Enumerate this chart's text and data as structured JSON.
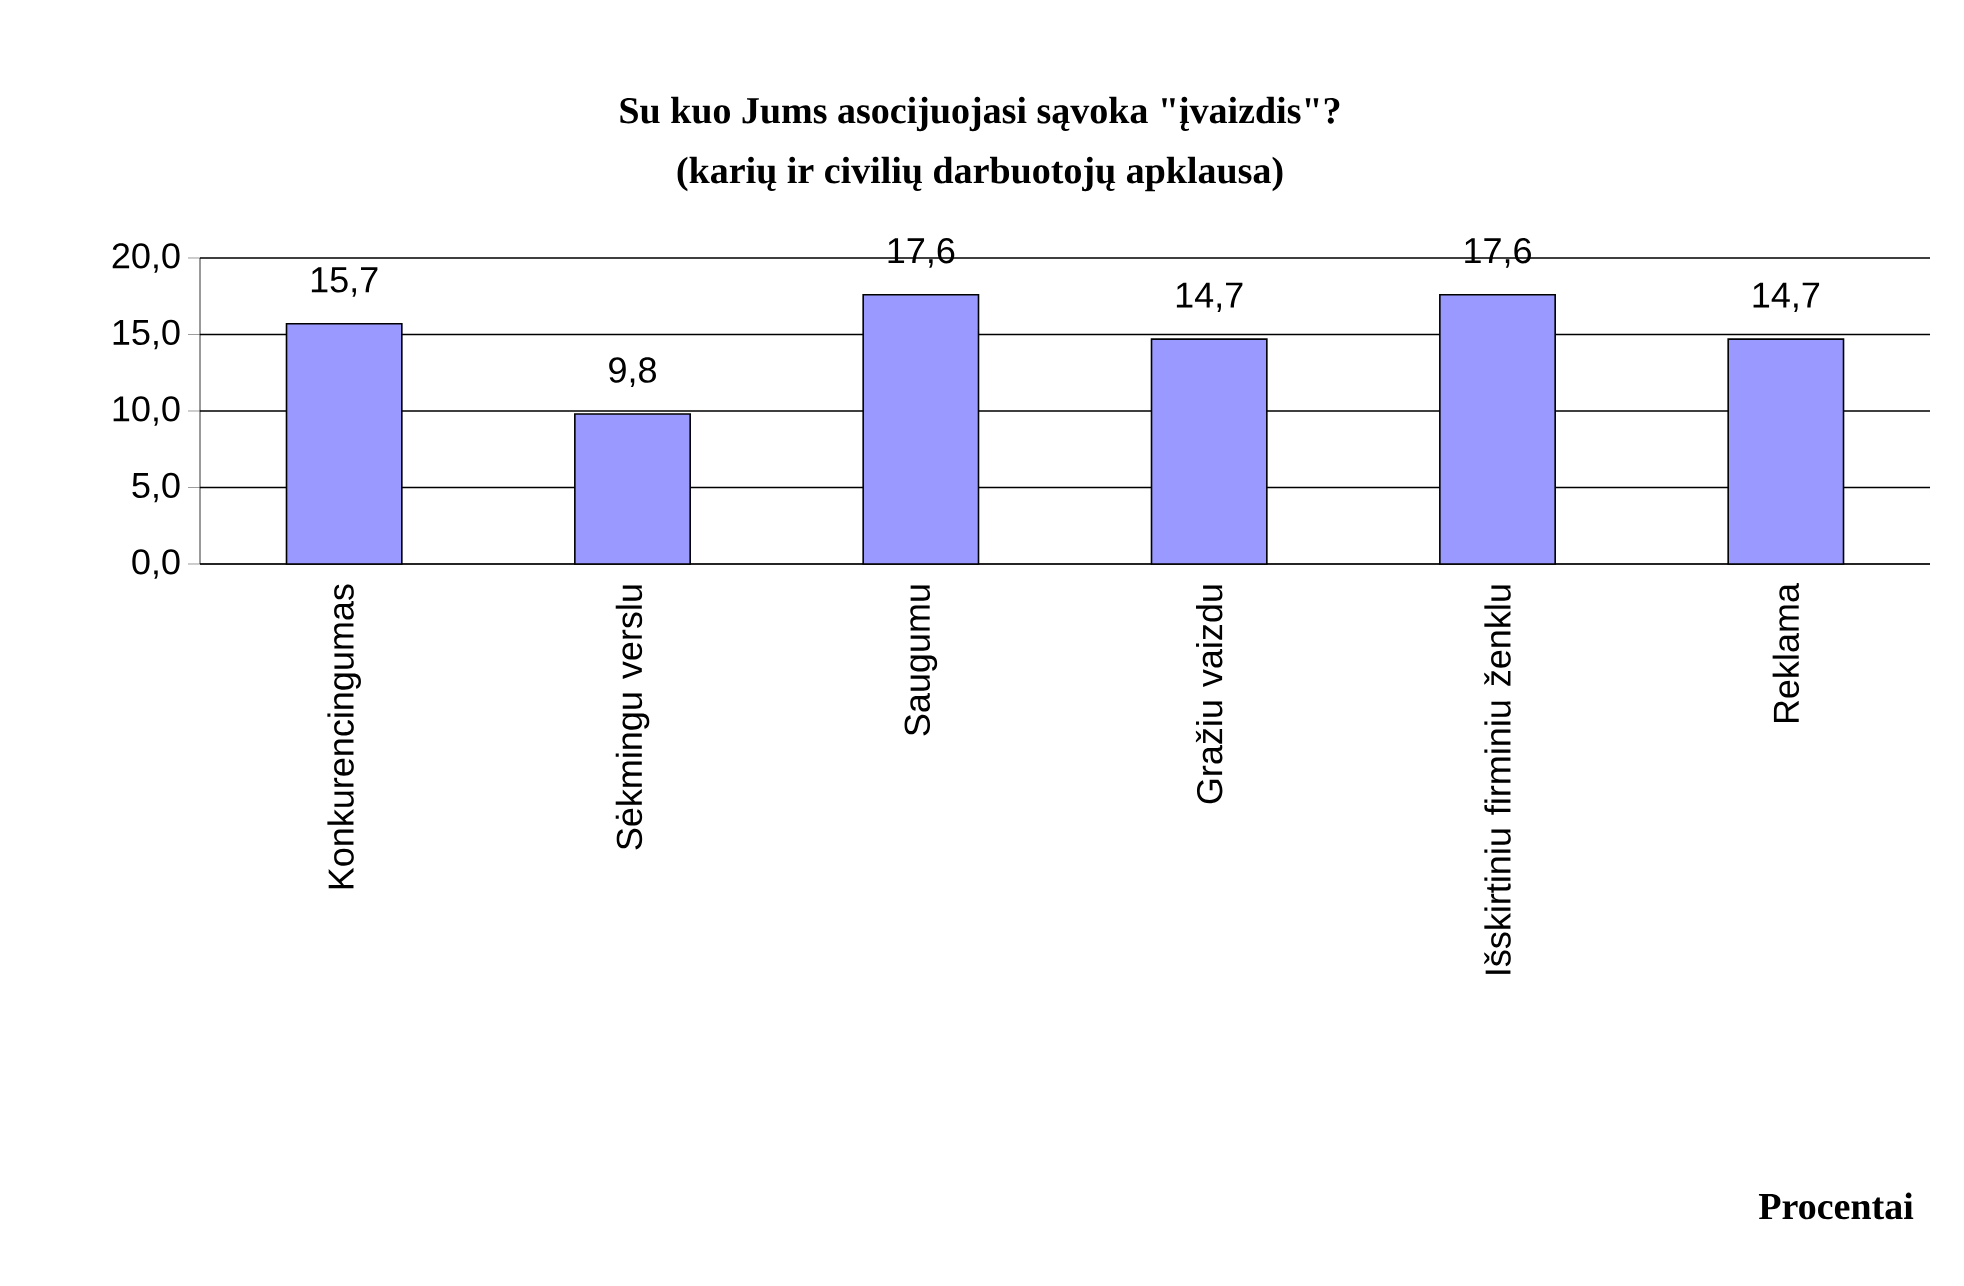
{
  "chart_data": {
    "type": "bar",
    "title": "Su kuo Jums asocijuojasi sąvoka \"įvaizdis\"?",
    "subtitle": "(karių ir civilių darbuotojų apklausa)",
    "categories": [
      "Konkurencingumas",
      "Sėkmingu verslu",
      "Saugumu",
      "Gražiu vaizdu",
      "Išskirtiniu firminiu ženklu",
      "Reklama"
    ],
    "values": [
      15.7,
      9.8,
      17.6,
      14.7,
      17.6,
      14.7
    ],
    "value_labels": [
      "15,7",
      "9,8",
      "17,6",
      "14,7",
      "17,6",
      "14,7"
    ],
    "color": "#9999ff",
    "ylim": [
      0,
      20
    ],
    "yticks": [
      {
        "value": 0,
        "label": "0,0"
      },
      {
        "value": 5,
        "label": "5,0"
      },
      {
        "value": 10,
        "label": "10,0"
      },
      {
        "value": 15,
        "label": "15,0"
      },
      {
        "value": 20,
        "label": "20,0"
      }
    ],
    "grid": "y",
    "annotations": [
      "Procentai"
    ]
  }
}
